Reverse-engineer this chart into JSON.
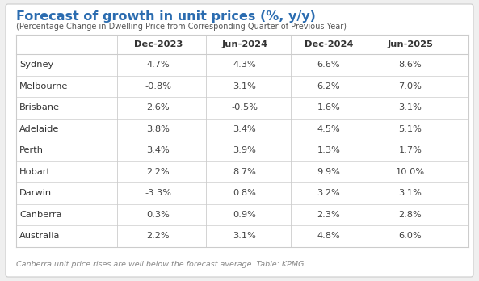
{
  "title": "Forecast of growth in unit prices (%, y/y)",
  "subtitle": "(Percentage Change in Dwelling Price from Corresponding Quarter of Previous Year)",
  "columns": [
    "",
    "Dec-2023",
    "Jun-2024",
    "Dec-2024",
    "Jun-2025"
  ],
  "rows": [
    [
      "Sydney",
      "4.7%",
      "4.3%",
      "6.6%",
      "8.6%"
    ],
    [
      "Melbourne",
      "-0.8%",
      "3.1%",
      "6.2%",
      "7.0%"
    ],
    [
      "Brisbane",
      "2.6%",
      "-0.5%",
      "1.6%",
      "3.1%"
    ],
    [
      "Adelaide",
      "3.8%",
      "3.4%",
      "4.5%",
      "5.1%"
    ],
    [
      "Perth",
      "3.4%",
      "3.9%",
      "1.3%",
      "1.7%"
    ],
    [
      "Hobart",
      "2.2%",
      "8.7%",
      "9.9%",
      "10.0%"
    ],
    [
      "Darwin",
      "-3.3%",
      "0.8%",
      "3.2%",
      "3.1%"
    ],
    [
      "Canberra",
      "0.3%",
      "0.9%",
      "2.3%",
      "2.8%"
    ],
    [
      "Australia",
      "2.2%",
      "3.1%",
      "4.8%",
      "6.0%"
    ]
  ],
  "footnote": "Canberra unit price rises are well below the forecast average. Table: KPMG.",
  "title_color": "#2b6cb0",
  "subtitle_color": "#555555",
  "header_color": "#333333",
  "cell_color": "#444444",
  "city_color": "#333333",
  "footnote_color": "#888888",
  "bg_color": "#efefef",
  "table_bg": "#ffffff",
  "border_color": "#cccccc"
}
